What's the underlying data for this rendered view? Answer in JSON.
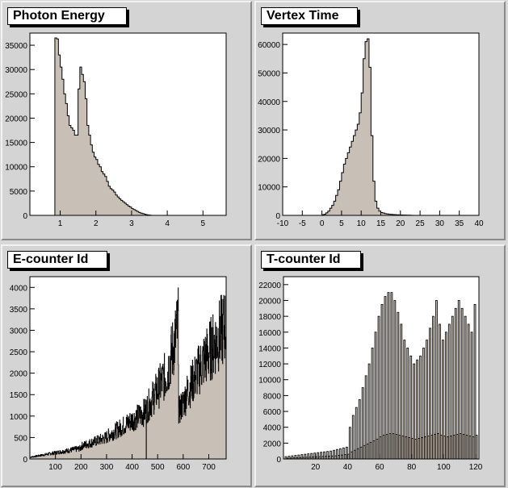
{
  "canvas": {
    "background": "#d8d8d8",
    "pad_color": "#d4d4d4",
    "fill_color": "#c8bfb6",
    "line_color": "#000000"
  },
  "chart_data": [
    {
      "type": "histogram",
      "title": "Photon Energy",
      "xlim": [
        0.15,
        5.65
      ],
      "ylim": [
        0,
        37500
      ],
      "xticks": [
        1,
        2,
        3,
        4,
        5
      ],
      "yticks": [
        0,
        5000,
        10000,
        15000,
        20000,
        25000,
        30000,
        35000
      ],
      "ytick_labels": [
        "0",
        "5000",
        "10000",
        "15000",
        "20000",
        "25000",
        "30000",
        "35000"
      ],
      "bins": {
        "edges_start": 0.85,
        "bin_width": 0.05,
        "values": [
          36500,
          36300,
          33000,
          30500,
          28000,
          25000,
          23000,
          20500,
          18500,
          18000,
          17500,
          16500,
          16500,
          26000,
          30500,
          29000,
          27500,
          24000,
          18500,
          16500,
          14500,
          13000,
          12000,
          11500,
          10500,
          10000,
          9000,
          8500,
          8000,
          7000,
          6000,
          5500,
          5200,
          4800,
          4200,
          3800,
          3400,
          3100,
          2800,
          2500,
          2200,
          1900,
          1700,
          1400,
          1200,
          1000,
          800,
          600,
          450,
          350,
          250,
          150,
          80,
          40
        ]
      }
    },
    {
      "type": "histogram",
      "title": "Vertex Time",
      "xlim": [
        -10,
        40
      ],
      "ylim": [
        0,
        64000
      ],
      "xticks": [
        -10,
        -5,
        0,
        5,
        10,
        15,
        20,
        25,
        30,
        35,
        40
      ],
      "yticks": [
        0,
        10000,
        20000,
        30000,
        40000,
        50000,
        60000
      ],
      "ytick_labels": [
        "0",
        "10000",
        "20000",
        "30000",
        "40000",
        "50000",
        "60000"
      ],
      "bins": {
        "edges_start": 0.0,
        "bin_width": 0.5,
        "values": [
          200,
          400,
          900,
          1500,
          2500,
          3500,
          5000,
          7000,
          9000,
          12000,
          15000,
          18000,
          20000,
          22000,
          24000,
          26000,
          28000,
          30000,
          32000,
          36000,
          43000,
          55000,
          61000,
          62000,
          52000,
          28000,
          12000,
          5000,
          2500,
          1500,
          1000,
          800,
          600,
          500,
          400,
          350,
          300,
          250,
          200,
          180,
          150,
          120,
          100,
          80,
          60,
          50
        ]
      }
    },
    {
      "type": "histogram",
      "title": "E-counter Id",
      "xlim": [
        0,
        768
      ],
      "ylim": [
        0,
        4250
      ],
      "xticks": [
        100,
        200,
        300,
        400,
        500,
        600,
        700
      ],
      "yticks": [
        0,
        500,
        1000,
        1500,
        2000,
        2500,
        3000,
        3500,
        4000
      ],
      "ytick_labels": [
        "0",
        "500",
        "1000",
        "1500",
        "2000",
        "2500",
        "3000",
        "3500",
        "4000"
      ],
      "segments": [
        {
          "x": [
            0,
            200
          ],
          "y": [
            40,
            250
          ]
        },
        {
          "x": [
            200,
            300
          ],
          "y": [
            300,
            500
          ]
        },
        {
          "x": [
            300,
            450
          ],
          "y": [
            520,
            1100
          ]
        },
        {
          "x": [
            450,
            540
          ],
          "y": [
            1100,
            2050
          ]
        },
        {
          "x": [
            540,
            582
          ],
          "y": [
            2100,
            3150
          ]
        },
        {
          "x": [
            582,
            610
          ],
          "y": [
            1100,
            1450
          ]
        },
        {
          "x": [
            610,
            680
          ],
          "y": [
            1500,
            2300
          ]
        },
        {
          "x": [
            680,
            768
          ],
          "y": [
            2300,
            3150
          ]
        }
      ]
    },
    {
      "type": "histogram",
      "title": "T-counter Id",
      "xlim": [
        0,
        122
      ],
      "ylim": [
        0,
        23000
      ],
      "xticks": [
        20,
        40,
        60,
        80,
        100,
        120
      ],
      "yticks": [
        0,
        2000,
        4000,
        6000,
        8000,
        10000,
        12000,
        14000,
        16000,
        18000,
        20000,
        22000
      ],
      "ytick_labels": [
        "0",
        "2000",
        "4000",
        "6000",
        "8000",
        "10000",
        "12000",
        "14000",
        "16000",
        "18000",
        "20000",
        "22000"
      ],
      "odd_values": [
        300,
        350,
        400,
        450,
        500,
        550,
        600,
        650,
        700,
        750,
        800,
        850,
        900,
        950,
        1000,
        1100,
        1200,
        1300,
        1400,
        1500,
        4000,
        5500,
        6500,
        7500,
        9000,
        10500,
        12000,
        14000,
        16000,
        18000,
        19500,
        20500,
        21000,
        21000,
        20000,
        18500,
        17000,
        15000,
        14000,
        13000,
        12000,
        12500,
        13000,
        14000,
        15000,
        16500,
        18000,
        20000,
        17000,
        15000,
        16000,
        17000,
        18000,
        19000,
        20000,
        19000,
        18000,
        17000,
        16000,
        19500
      ],
      "even_values": [
        100,
        120,
        140,
        160,
        180,
        200,
        220,
        240,
        260,
        280,
        300,
        320,
        340,
        360,
        380,
        400,
        450,
        500,
        550,
        600,
        900,
        1100,
        1300,
        1500,
        1700,
        1900,
        2100,
        2300,
        2500,
        2800,
        3000,
        3100,
        3200,
        3200,
        3100,
        3000,
        2900,
        2800,
        2700,
        2600,
        2500,
        2600,
        2700,
        2800,
        2900,
        3000,
        3100,
        3200,
        3000,
        2900,
        2800,
        2900,
        3000,
        3100,
        3200,
        3100,
        3000,
        2900,
        2800,
        3000
      ]
    }
  ]
}
